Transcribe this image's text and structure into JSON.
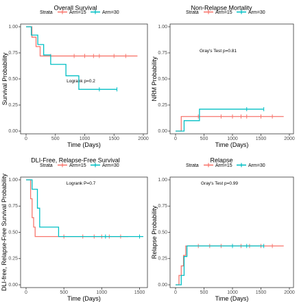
{
  "colors": {
    "arm15": "#f8766d",
    "arm30": "#00bfc4"
  },
  "chart_data": [
    {
      "type": "line",
      "step": true,
      "title": "Overall Survival",
      "legend_title": "Strata",
      "legend": [
        "Arm=15",
        "Arm=30"
      ],
      "legend_position": "top",
      "xlabel": "Time (Days)",
      "ylabel": "Survival Probability",
      "xlim": [
        0,
        2000
      ],
      "ylim": [
        0,
        1
      ],
      "xticks": [
        "0",
        "500",
        "1000",
        "1500",
        "2000"
      ],
      "yticks": [
        "0.00",
        "0.25",
        "0.50",
        "0.75",
        "1.00"
      ],
      "annotation": "Logrank p=0.2",
      "series": [
        {
          "name": "Arm=15",
          "color": "#f8766d",
          "x": [
            0,
            100,
            170,
            240,
            1900
          ],
          "y": [
            1.0,
            0.9,
            0.81,
            0.72,
            0.72
          ],
          "censor_x": [
            420,
            820,
            1000,
            1150,
            1250,
            1500,
            1700
          ]
        },
        {
          "name": "Arm=30",
          "color": "#00bfc4",
          "x": [
            0,
            90,
            200,
            300,
            420,
            680,
            900,
            1550
          ],
          "y": [
            1.0,
            0.92,
            0.83,
            0.73,
            0.64,
            0.53,
            0.4,
            0.4
          ],
          "censor_x": [
            1250,
            1550
          ]
        }
      ]
    },
    {
      "type": "line",
      "step": true,
      "title": "Non-Relapse Mortality",
      "legend_title": "Strata",
      "legend": [
        "Arm=15",
        "Arm=30"
      ],
      "legend_position": "top",
      "xlabel": "Time (Days)",
      "ylabel": "NRM Probability",
      "xlim": [
        0,
        2000
      ],
      "ylim": [
        0,
        1
      ],
      "xticks": [
        "0",
        "500",
        "1000",
        "1500",
        "2000"
      ],
      "yticks": [
        "0.00",
        "0.25",
        "0.50",
        "0.75",
        "1.00"
      ],
      "annotation": "Gray's Test p=0.81",
      "series": [
        {
          "name": "Arm=15",
          "color": "#f8766d",
          "x": [
            0,
            100,
            1900
          ],
          "y": [
            0.0,
            0.14,
            0.14
          ],
          "censor_x": [
            400,
            800,
            1000,
            1150,
            1250,
            1500,
            1700
          ]
        },
        {
          "name": "Arm=30",
          "color": "#00bfc4",
          "x": [
            0,
            150,
            420,
            1550
          ],
          "y": [
            0.0,
            0.1,
            0.21,
            0.21
          ],
          "censor_x": [
            1250,
            1550
          ]
        }
      ]
    },
    {
      "type": "line",
      "step": true,
      "title": "DLI-Free, Relapse-Free Survival",
      "legend_title": "Strata",
      "legend": [
        "Arm=15",
        "Arm=30"
      ],
      "legend_position": "top",
      "xlabel": "Time (Days)",
      "ylabel": "DLI-free, Relapse-Free Survival Probability",
      "xlim": [
        0,
        1550
      ],
      "ylim": [
        0,
        1
      ],
      "xticks": [
        "0",
        "500",
        "1000",
        "1500"
      ],
      "yticks": [
        "0.00",
        "0.25",
        "0.50",
        "0.75",
        "1.00"
      ],
      "annotation": "Logrank P=0.7",
      "series": [
        {
          "name": "Arm=15",
          "color": "#f8766d",
          "x": [
            0,
            60,
            80,
            100,
            120,
            1350
          ],
          "y": [
            1.0,
            0.82,
            0.64,
            0.55,
            0.46,
            0.46
          ],
          "censor_x": [
            500,
            750,
            900,
            1000,
            1100,
            1250
          ]
        },
        {
          "name": "Arm=30",
          "color": "#00bfc4",
          "x": [
            0,
            80,
            150,
            180,
            430,
            1550
          ],
          "y": [
            1.0,
            0.91,
            0.73,
            0.55,
            0.46,
            0.46
          ],
          "censor_x": [
            1050,
            1500
          ]
        }
      ]
    },
    {
      "type": "line",
      "step": true,
      "title": "Relapse",
      "legend_title": "Strata",
      "legend": [
        "Arm=15",
        "Arm=30"
      ],
      "legend_position": "top",
      "xlabel": "Time (Days)",
      "ylabel": "Relapse Probability",
      "xlim": [
        0,
        2000
      ],
      "ylim": [
        0,
        1
      ],
      "xticks": [
        "0",
        "500",
        "1000",
        "1500",
        "2000"
      ],
      "yticks": [
        "0.00",
        "0.25",
        "0.50",
        "0.75",
        "1.00"
      ],
      "annotation": "Gray's Test p=0.99",
      "series": [
        {
          "name": "Arm=15",
          "color": "#f8766d",
          "x": [
            0,
            60,
            100,
            140,
            180,
            1900
          ],
          "y": [
            0.0,
            0.09,
            0.18,
            0.28,
            0.37,
            0.37
          ],
          "censor_x": [
            400,
            600,
            800,
            1000,
            1150,
            1300,
            1500,
            1700
          ]
        },
        {
          "name": "Arm=30",
          "color": "#00bfc4",
          "x": [
            0,
            100,
            150,
            200,
            1550
          ],
          "y": [
            0.0,
            0.09,
            0.27,
            0.37,
            0.37
          ],
          "censor_x": [
            1000,
            1250,
            1550
          ]
        }
      ]
    }
  ]
}
